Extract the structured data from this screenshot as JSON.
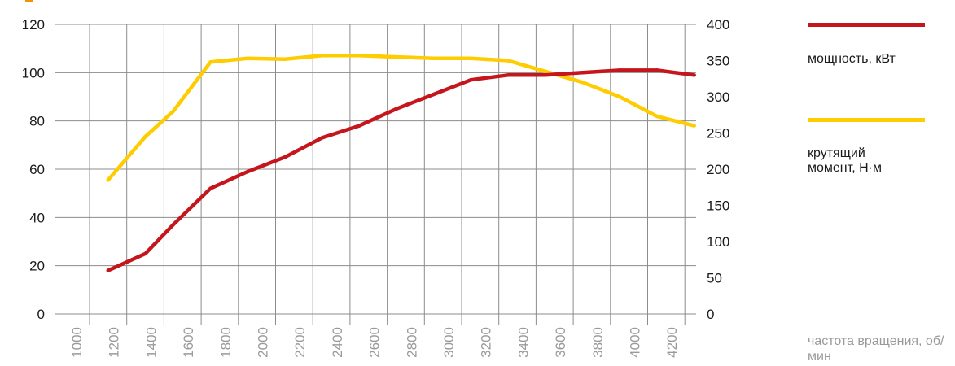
{
  "chart_data": {
    "type": "line",
    "x": [
      1100,
      1300,
      1450,
      1650,
      1850,
      2050,
      2250,
      2450,
      2650,
      2850,
      3050,
      3250,
      3450,
      3650,
      3850,
      4050,
      4250
    ],
    "x_ticks": [
      "1000",
      "1200",
      "1400",
      "1600",
      "1800",
      "2000",
      "2200",
      "2400",
      "2600",
      "2800",
      "3000",
      "3200",
      "3400",
      "3600",
      "3800",
      "4000",
      "4200"
    ],
    "xlabel": "частота вращения, об/мин",
    "y_left": {
      "lim": [
        0,
        120
      ],
      "ticks": [
        "0",
        "20",
        "40",
        "60",
        "80",
        "100",
        "120"
      ]
    },
    "y_right": {
      "lim": [
        0,
        400
      ],
      "ticks": [
        "0",
        "50",
        "100",
        "150",
        "200",
        "250",
        "300",
        "350",
        "400"
      ]
    },
    "grid": true,
    "legend_position": "right",
    "series": [
      {
        "name": "мощность, кВт",
        "axis": "left",
        "color": "#c4161c",
        "values": [
          18,
          25,
          37,
          52,
          59,
          65,
          73,
          78,
          85,
          91,
          97,
          99,
          99,
          100,
          101,
          101,
          99
        ]
      },
      {
        "name": "крутящий момент, Н·м",
        "axis": "right",
        "color": "#ffcc00",
        "values": [
          185,
          245,
          280,
          348,
          353,
          352,
          357,
          357,
          355,
          353,
          353,
          350,
          335,
          320,
          300,
          273,
          260
        ]
      }
    ]
  },
  "accent_color": "#f39200"
}
